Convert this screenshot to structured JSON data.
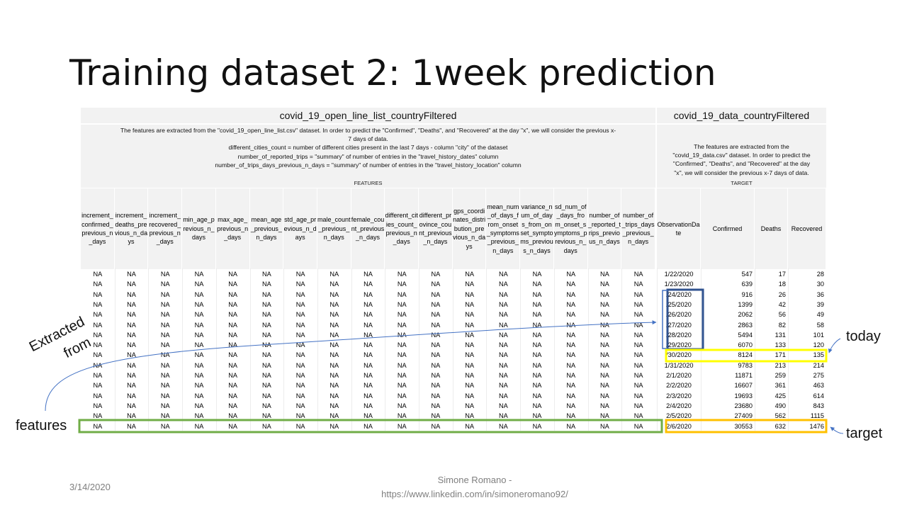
{
  "slide": {
    "title": "Training dataset 2: 1week prediction",
    "date": "3/14/2020",
    "author": "Simone Romano -",
    "author_url": "https://www.linkedin.com/in/simoneromano92/"
  },
  "table": {
    "left_dataset": "covid_19_open_line_list_countryFiltered",
    "right_dataset": "covid_19_data_countryFiltered",
    "left_desc": [
      "The features are extracted from the \"covid_19_open_line_list.csv\" dataset. In order to predict the \"Confirmed\", \"Deaths\", and \"Recovered\" at the day \"x\", we will consider the previous x-",
      "7 days of data.",
      "different_cities_count = number of different cities present in the last 7 days - column \"city\" of the dataset",
      "number_of_reported_trips = \"summary\" of number of entries in the \"travel_history_dates\" column",
      "number_of_trips_days_previous_n_days = \"summary\" of number of entries in the \"travel_history_location\" column"
    ],
    "right_desc": [
      "The features are extracted from the",
      "\"covid_19_data.csv\" dataset. In order to predict the",
      "\"Confirmed\", \"Deaths\", and \"Recovered\" at the day",
      "\"x\", we will consider the previous x-7 days of data."
    ],
    "features_label": "FEATURES",
    "target_label": "TARGET",
    "feature_columns": [
      "increment_confirmed_previous_n_days",
      "increment_deaths_previous_n_days",
      "increment_recovered_previous_n_days",
      "min_age_previous_n_days",
      "max_age_previous_n_days",
      "mean_age_previous_n_days",
      "std_age_previous_n_days",
      "male_count_previous_n_days",
      "female_count_previous_n_days",
      "different_cities_count_previous_n_days",
      "different_province_count_previous_n_days",
      "gps_coordinates_distribution_previous_n_days",
      "mean_num_of_days_from_onset_symptoms_previous_n_days",
      "variance_num_of_days_from_onset_symptoms_previous_n_days",
      "sd_num_of_days_from_onset_symptoms_previous_n_days",
      "number_of_reported_trips_previous_n_days",
      "number_of_trips_days_previous_n_days"
    ],
    "target_columns": [
      "ObservationDate",
      "Confirmed",
      "Deaths",
      "Recovered"
    ],
    "na_value": "NA",
    "rows": [
      {
        "date": "1/22/2020",
        "confirmed": "547",
        "deaths": "17",
        "recovered": "28"
      },
      {
        "date": "1/23/2020",
        "confirmed": "639",
        "deaths": "18",
        "recovered": "30"
      },
      {
        "date": "/24/2020",
        "confirmed": "916",
        "deaths": "26",
        "recovered": "36"
      },
      {
        "date": "/25/2020",
        "confirmed": "1399",
        "deaths": "42",
        "recovered": "39"
      },
      {
        "date": "/26/2020",
        "confirmed": "2062",
        "deaths": "56",
        "recovered": "49"
      },
      {
        "date": "/27/2020",
        "confirmed": "2863",
        "deaths": "82",
        "recovered": "58"
      },
      {
        "date": "/28/2020",
        "confirmed": "5494",
        "deaths": "131",
        "recovered": "101"
      },
      {
        "date": "/29/2020",
        "confirmed": "6070",
        "deaths": "133",
        "recovered": "120"
      },
      {
        "date": "/30/2020",
        "confirmed": "8124",
        "deaths": "171",
        "recovered": "135"
      },
      {
        "date": "1/31/2020",
        "confirmed": "9783",
        "deaths": "213",
        "recovered": "214"
      },
      {
        "date": "2/1/2020",
        "confirmed": "11871",
        "deaths": "259",
        "recovered": "275"
      },
      {
        "date": "2/2/2020",
        "confirmed": "16607",
        "deaths": "361",
        "recovered": "463"
      },
      {
        "date": "2/3/2020",
        "confirmed": "19693",
        "deaths": "425",
        "recovered": "614"
      },
      {
        "date": "2/4/2020",
        "confirmed": "23680",
        "deaths": "490",
        "recovered": "843"
      },
      {
        "date": "2/5/2020",
        "confirmed": "27409",
        "deaths": "562",
        "recovered": "1115"
      },
      {
        "date": "2/6/2020",
        "confirmed": "30553",
        "deaths": "632",
        "recovered": "1476"
      }
    ]
  },
  "annotations": {
    "today": "today",
    "target": "target",
    "features": "features",
    "extracted_from": "Extracted from",
    "extracted_line1": "Extracted",
    "extracted_line2": "from"
  },
  "colors": {
    "window_box": "#2f528f",
    "today_box": "#ffff00",
    "target_box": "#ffc000",
    "features_box": "#70ad47",
    "arrow": "#4472c4"
  }
}
